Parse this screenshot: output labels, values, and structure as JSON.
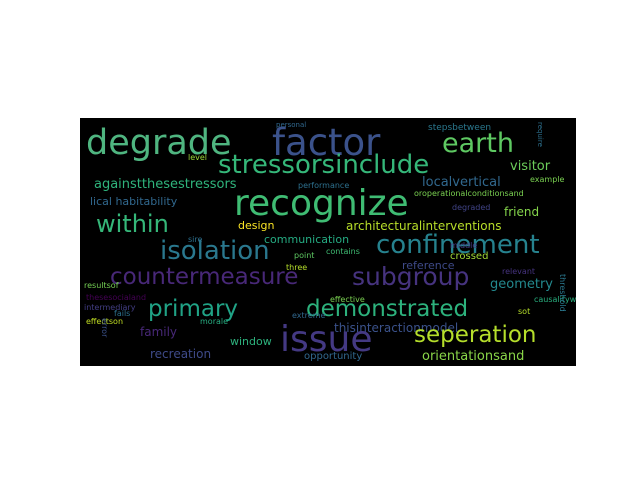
{
  "wordcloud": {
    "background": "#000000",
    "words": [
      {
        "text": "degrade",
        "color": "#4fb580"
      },
      {
        "text": "factor",
        "color": "#3b528b"
      },
      {
        "text": "earth",
        "color": "#5ec962"
      },
      {
        "text": "stressorsinclude",
        "color": "#35b779"
      },
      {
        "text": "recognize",
        "color": "#3fbc73"
      },
      {
        "text": "againstthesestressors",
        "color": "#2fb47c"
      },
      {
        "text": "localvertical",
        "color": "#31688e"
      },
      {
        "text": "visitor",
        "color": "#6ccd5a"
      },
      {
        "text": "within",
        "color": "#35b779"
      },
      {
        "text": "isolation",
        "color": "#2a788e"
      },
      {
        "text": "confinement",
        "color": "#26828e"
      },
      {
        "text": "countermeasure",
        "color": "#482878"
      },
      {
        "text": "subgroup",
        "color": "#46337f"
      },
      {
        "text": "primary",
        "color": "#20a386"
      },
      {
        "text": "demonstrated",
        "color": "#2db27d"
      },
      {
        "text": "issue",
        "color": "#443983"
      },
      {
        "text": "seperation",
        "color": "#b5de2b"
      },
      {
        "text": "orientationsand",
        "color": "#89d548"
      },
      {
        "text": "architecturalinterventions",
        "color": "#b8de29"
      },
      {
        "text": "lical habitability",
        "color": "#31688e"
      },
      {
        "text": "design",
        "color": "#fde725"
      },
      {
        "text": "communication",
        "color": "#25ab82"
      },
      {
        "text": "reference",
        "color": "#3e4a89"
      },
      {
        "text": "geometry",
        "color": "#23898e"
      },
      {
        "text": "thisinteractionmodel",
        "color": "#3b528b"
      },
      {
        "text": "recreation",
        "color": "#3e4a89"
      },
      {
        "text": "window",
        "color": "#2db27d"
      },
      {
        "text": "opportunity",
        "color": "#31688e"
      },
      {
        "text": "family",
        "color": "#482878"
      },
      {
        "text": "friend",
        "color": "#84d44b"
      },
      {
        "text": "effective",
        "color": "#7ad151"
      },
      {
        "text": "morale",
        "color": "#27ad81"
      },
      {
        "text": "extreme",
        "color": "#31688e"
      },
      {
        "text": "causalitywere",
        "color": "#29af7f"
      },
      {
        "text": "relevant",
        "color": "#46337f"
      },
      {
        "text": "crossed",
        "color": "#a2da37"
      },
      {
        "text": "degraded",
        "color": "#414487"
      },
      {
        "text": "oroperationalconditionsand",
        "color": "#7ad151"
      },
      {
        "text": "performance",
        "color": "#2d708e"
      },
      {
        "text": "example",
        "color": "#7ad151"
      },
      {
        "text": "stepsbetween",
        "color": "#2a788e"
      },
      {
        "text": "thesesocialand",
        "color": "#440154"
      },
      {
        "text": "intermediary",
        "color": "#433e85"
      },
      {
        "text": "effectson",
        "color": "#c2df23"
      },
      {
        "text": "resultsof",
        "color": "#75d054"
      },
      {
        "text": "fails",
        "color": "#2c728e"
      },
      {
        "text": "three",
        "color": "#b5de2b"
      },
      {
        "text": "point",
        "color": "#5ec962"
      },
      {
        "text": "contains",
        "color": "#3fbc73"
      },
      {
        "text": "sire",
        "color": "#2d708e"
      },
      {
        "text": "level",
        "color": "#9fda3a"
      },
      {
        "text": "sot",
        "color": "#b5de2b"
      },
      {
        "text": "middle",
        "color": "#443983"
      },
      {
        "text": "personal",
        "color": "#31688e"
      },
      {
        "text": "error",
        "color": "#3b528b"
      },
      {
        "text": "threshold",
        "color": "#2a788e"
      },
      {
        "text": "require",
        "color": "#2d708e"
      }
    ]
  }
}
